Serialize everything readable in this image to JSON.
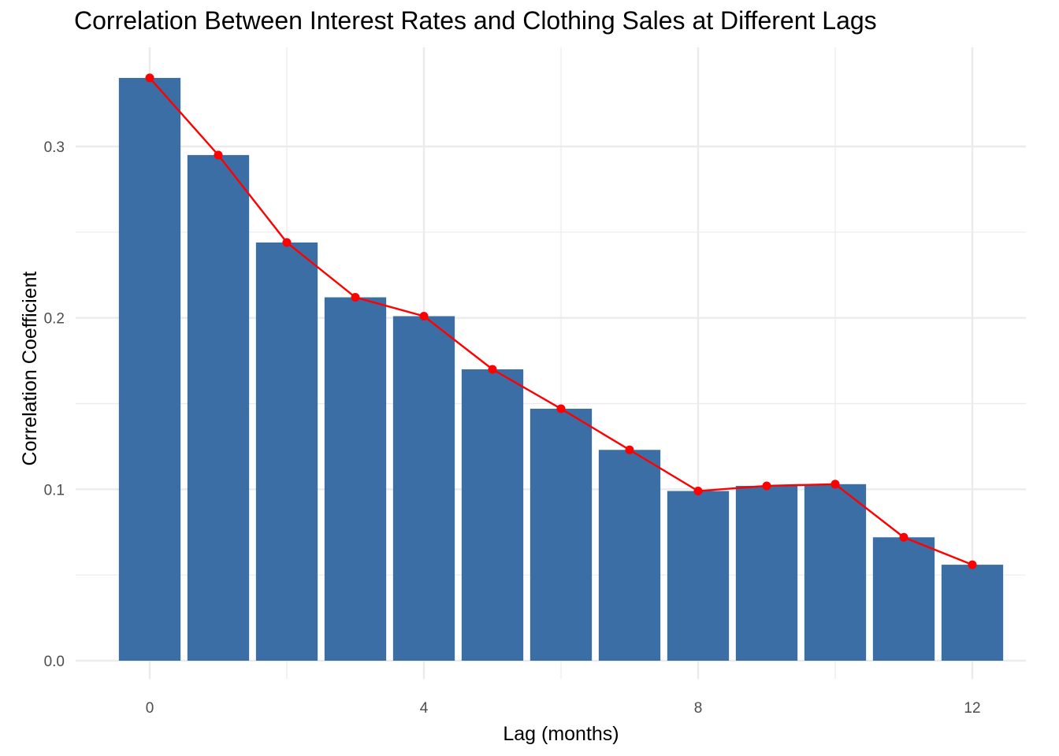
{
  "chart_data": {
    "type": "bar",
    "title": "Correlation Between Interest Rates and Clothing Sales at Different Lags",
    "xlabel": "Lag (months)",
    "ylabel": "Correlation Coefficient",
    "x": [
      0,
      1,
      2,
      3,
      4,
      5,
      6,
      7,
      8,
      9,
      10,
      11,
      12
    ],
    "values": [
      0.34,
      0.295,
      0.244,
      0.212,
      0.201,
      0.17,
      0.147,
      0.123,
      0.099,
      0.102,
      0.103,
      0.072,
      0.056
    ],
    "xlim": [
      -0.5,
      12.5
    ],
    "ylim": [
      0,
      0.34
    ],
    "x_ticks": [
      0,
      4,
      8,
      12
    ],
    "x_tick_labels": [
      "0",
      "4",
      "8",
      "12"
    ],
    "y_ticks": [
      0.0,
      0.1,
      0.2,
      0.3
    ],
    "y_tick_labels": [
      "0.0",
      "0.1",
      "0.2",
      "0.3"
    ],
    "grid": true,
    "overlay": {
      "type": "line+points",
      "values_source": "values"
    },
    "colors": {
      "bar": "#3a6ea5",
      "line": "#ff0000",
      "grid": "#ebebeb"
    }
  }
}
